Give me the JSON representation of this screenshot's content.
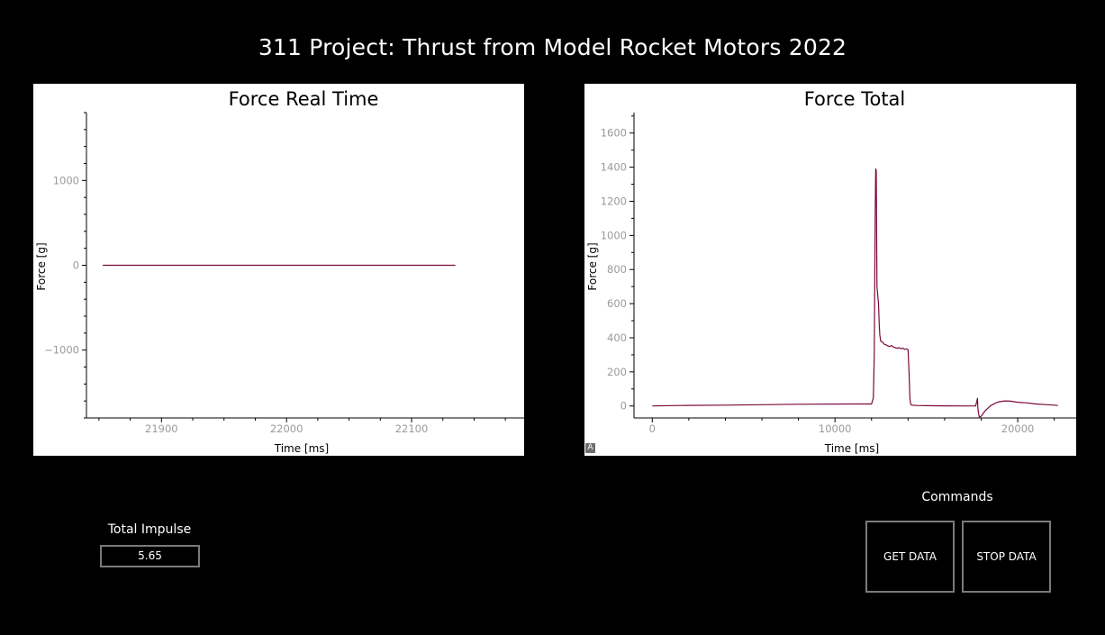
{
  "app": {
    "title": "311 Project: Thrust from Model Rocket Motors 2022"
  },
  "colors": {
    "background": "#000000",
    "plot_background": "#ffffff",
    "curve": "#7a0a3c",
    "tick_text": "#9a9a9a"
  },
  "impulse": {
    "label": "Total Impulse",
    "value": "5.65"
  },
  "commands": {
    "label": "Commands",
    "get_label": "GET DATA",
    "stop_label": "STOP DATA"
  },
  "autorange_icon": "A",
  "chart_data": [
    {
      "type": "line",
      "title": "Force Real Time",
      "xlabel": "Time [ms]",
      "ylabel": "Force [g]",
      "xlim": [
        21840,
        22190
      ],
      "ylim": [
        -1800,
        1800
      ],
      "xticks": [
        21900,
        22000,
        22100
      ],
      "yticks": [
        -1000,
        0,
        1000
      ],
      "grid": false,
      "series": [
        {
          "x": [
            21853,
            22135
          ],
          "y": [
            0,
            0
          ]
        }
      ]
    },
    {
      "type": "line",
      "title": "Force Total",
      "xlabel": "Time [ms]",
      "ylabel": "Force [g]",
      "xlim": [
        -1000,
        23200
      ],
      "ylim": [
        -70,
        1720
      ],
      "xticks": [
        0,
        10000,
        20000
      ],
      "yticks": [
        0,
        200,
        400,
        600,
        800,
        1000,
        1200,
        1400,
        1600
      ],
      "grid": false,
      "series": [
        {
          "x": [
            0,
            1500,
            4000,
            8000,
            11000,
            12000,
            12100,
            12150,
            12200,
            12230,
            12260,
            12300,
            12380,
            12420,
            12450,
            12500,
            12600,
            12700,
            12800,
            12900,
            13000,
            13100,
            13200,
            13300,
            13400,
            13500,
            13600,
            13700,
            13800,
            13900,
            14000,
            14050,
            14100,
            14150,
            14200,
            14500,
            15000,
            16000,
            17000,
            17700,
            17800,
            17820,
            17850,
            17900,
            18000,
            18200,
            18500,
            18800,
            19000,
            19300,
            19600,
            20000,
            20500,
            21000,
            21500,
            22000,
            22200
          ],
          "y": [
            0,
            3,
            5,
            10,
            12,
            12,
            50,
            300,
            1100,
            1390,
            1380,
            700,
            600,
            480,
            420,
            380,
            375,
            362,
            358,
            352,
            348,
            355,
            345,
            342,
            338,
            342,
            336,
            340,
            332,
            335,
            330,
            200,
            40,
            8,
            5,
            3,
            2,
            1,
            0,
            0,
            45,
            -10,
            -40,
            -65,
            -60,
            -30,
            0,
            18,
            25,
            30,
            28,
            22,
            18,
            12,
            8,
            5,
            3
          ]
        }
      ]
    }
  ]
}
